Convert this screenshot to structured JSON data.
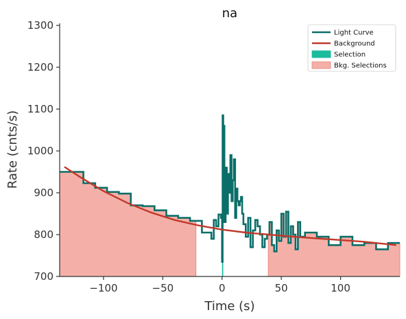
{
  "chart_data": {
    "type": "line",
    "title": "na",
    "xlabel": "Time (s)",
    "ylabel": "Rate (cnts/s)",
    "xlim": [
      -137,
      150
    ],
    "ylim": [
      700,
      1305
    ],
    "xticks": [
      -100,
      -50,
      0,
      50,
      100
    ],
    "yticks": [
      700,
      800,
      900,
      1000,
      1100,
      1200,
      1300
    ],
    "legend_position": "top-right",
    "grid": false,
    "colors": {
      "light_curve": "#0b6e69",
      "background": "#c0392b",
      "selection": "#1abc9c",
      "bkg_selection_fill": "#f4b0a8",
      "bkg_selection_edge": "#e9897d"
    },
    "legend": [
      {
        "label": "Light Curve",
        "kind": "line",
        "color": "#0b6e69"
      },
      {
        "label": "Background",
        "kind": "line",
        "color": "#c0392b"
      },
      {
        "label": "Selection",
        "kind": "patch",
        "color": "#1abc9c"
      },
      {
        "label": "Bkg. Selections",
        "kind": "patch",
        "color": "#f4b0a8"
      }
    ],
    "series": [
      {
        "name": "Light Curve",
        "kind": "step",
        "x": [
          -137,
          -117,
          -107,
          -97,
          -87,
          -77,
          -67,
          -57,
          -47,
          -37,
          -27,
          -17,
          -9,
          -7,
          -5,
          -3,
          -1,
          0,
          0.5,
          1,
          1.5,
          2,
          3,
          4,
          5,
          6,
          7,
          8,
          9,
          10,
          11,
          12,
          13,
          14,
          15,
          16,
          17,
          18,
          20,
          22,
          24,
          26,
          28,
          30,
          32,
          34,
          36,
          38,
          40,
          42,
          44,
          46,
          48,
          50,
          52,
          54,
          56,
          58,
          60,
          62,
          64,
          66,
          70,
          80,
          90,
          100,
          110,
          120,
          130,
          140,
          150
        ],
        "y": [
          950,
          923,
          912,
          902,
          898,
          870,
          868,
          858,
          845,
          840,
          833,
          805,
          790,
          835,
          820,
          848,
          840,
          735,
          1085,
          910,
          1060,
          830,
          960,
          850,
          945,
          900,
          990,
          880,
          930,
          980,
          840,
          910,
          880,
          870,
          880,
          890,
          850,
          825,
          795,
          840,
          770,
          810,
          835,
          820,
          800,
          770,
          790,
          800,
          830,
          775,
          760,
          810,
          785,
          850,
          795,
          855,
          780,
          820,
          800,
          765,
          830,
          795,
          805,
          795,
          775,
          795,
          775,
          780,
          765,
          780,
          778
        ]
      },
      {
        "name": "Background",
        "kind": "line",
        "x": [
          -133,
          -120,
          -100,
          -80,
          -60,
          -40,
          -20,
          0,
          20,
          40,
          60,
          80,
          100,
          120,
          147
        ],
        "y": [
          962,
          938,
          904,
          876,
          853,
          835,
          822,
          812,
          805,
          800,
          795,
          791,
          787,
          783,
          775
        ]
      }
    ],
    "bkg_selections": [
      [
        -137,
        -22
      ],
      [
        39,
        150
      ]
    ],
    "selection": [
      0,
      1
    ]
  }
}
